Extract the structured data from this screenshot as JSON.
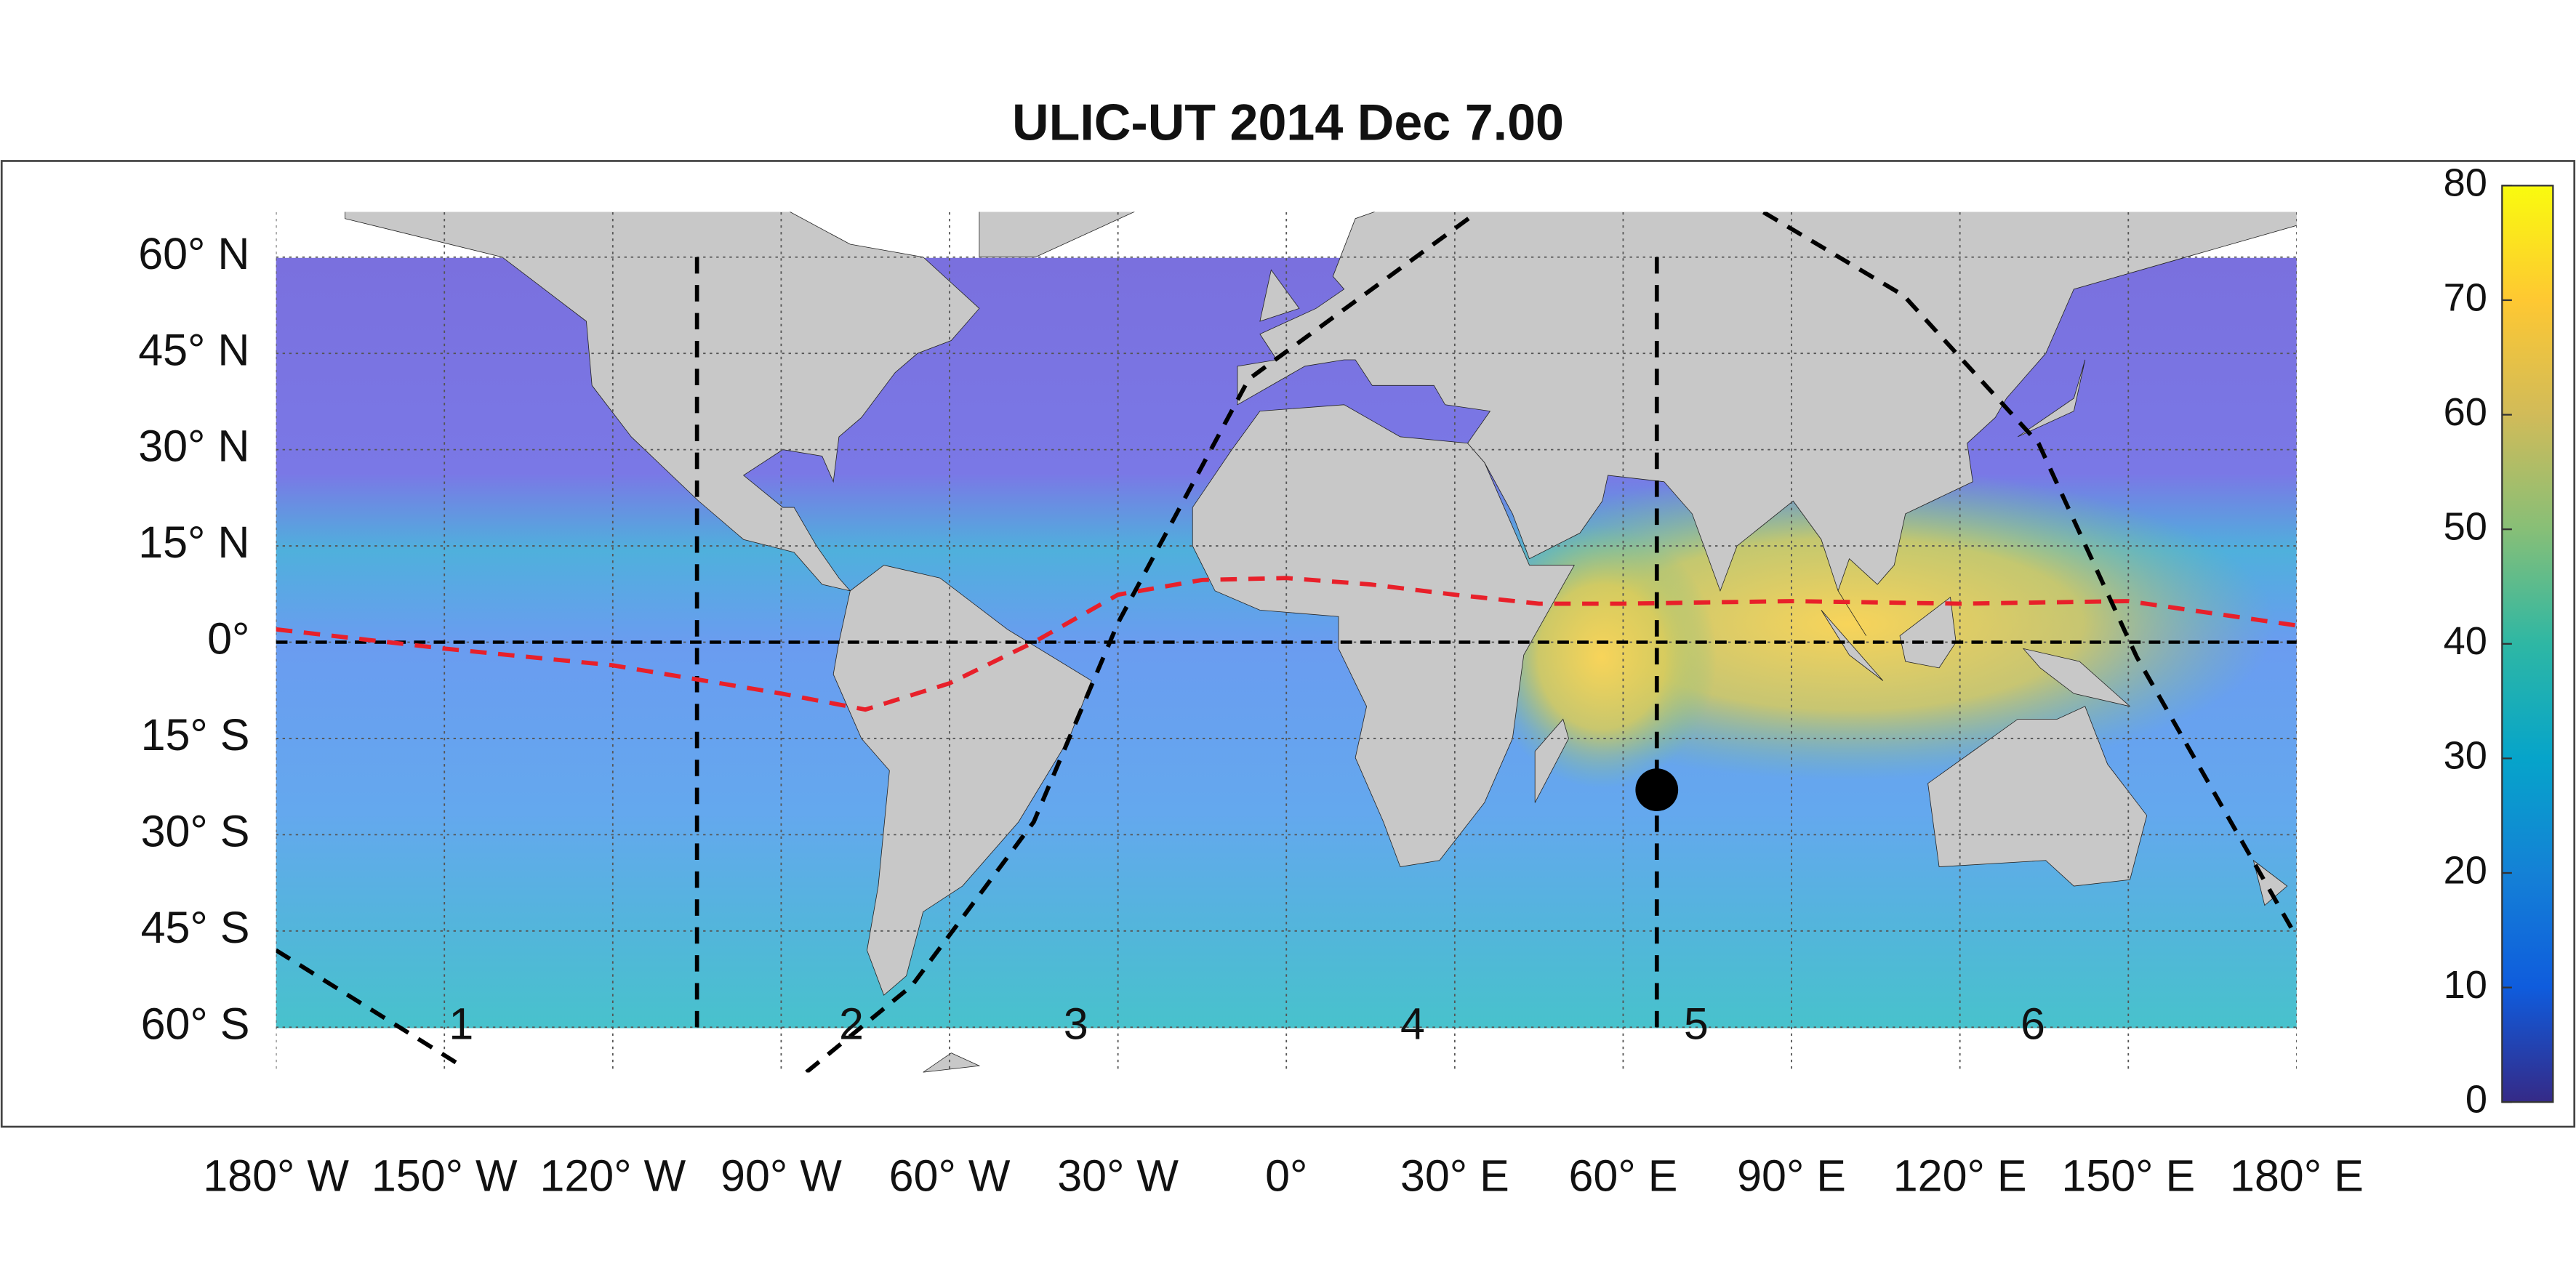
{
  "chart_data": {
    "type": "map",
    "title": "ULIC-UT 2014 Dec  7.00",
    "xlim": [
      -180,
      180
    ],
    "ylim": [
      -67,
      67
    ],
    "xticks": [
      {
        "value": -180,
        "label": "180° W"
      },
      {
        "value": -150,
        "label": "150° W"
      },
      {
        "value": -120,
        "label": "120° W"
      },
      {
        "value": -90,
        "label": "90° W"
      },
      {
        "value": -60,
        "label": "60° W"
      },
      {
        "value": -30,
        "label": "30° W"
      },
      {
        "value": 0,
        "label": "0°"
      },
      {
        "value": 30,
        "label": "30° E"
      },
      {
        "value": 60,
        "label": "60° E"
      },
      {
        "value": 90,
        "label": "90° E"
      },
      {
        "value": 120,
        "label": "120° E"
      },
      {
        "value": 150,
        "label": "150° E"
      },
      {
        "value": 180,
        "label": "180° E"
      }
    ],
    "yticks": [
      {
        "value": -60,
        "label": "60° S"
      },
      {
        "value": -45,
        "label": "45° S"
      },
      {
        "value": -30,
        "label": "30° S"
      },
      {
        "value": -15,
        "label": "15° S"
      },
      {
        "value": 0,
        "label": "0°"
      },
      {
        "value": 15,
        "label": "15° N"
      },
      {
        "value": 30,
        "label": "30° N"
      },
      {
        "value": 45,
        "label": "45° N"
      },
      {
        "value": 60,
        "label": "60° N"
      }
    ],
    "grid": true,
    "series": [
      {
        "color": "#e8202a",
        "x": [
          -180,
          -150,
          -120,
          -90,
          -75,
          -60,
          -45,
          -30,
          -15,
          0,
          15,
          30,
          45,
          60,
          90,
          120,
          150,
          180
        ],
        "values": [
          2,
          -1,
          -3.6,
          -8,
          -10.5,
          -6.4,
          0,
          7.4,
          9.7,
          10,
          9,
          7.4,
          6,
          6,
          6.4,
          6,
          6.4,
          2.6
        ]
      },
      {
        "color": "#000000",
        "x": [
          -180,
          -147,
          -116,
          -85.5,
          -66.7,
          -45,
          -30,
          -6.7,
          34,
          59.5,
          85,
          110,
          134,
          151.5,
          180
        ],
        "values": [
          -48,
          -66,
          null,
          -67,
          -53.5,
          -28,
          3,
          41,
          67,
          null,
          67,
          54,
          31,
          -2.3,
          -46
        ]
      }
    ],
    "vlines": [
      -105,
      66
    ],
    "hlines": [
      0
    ],
    "points": {
      "x": [
        66
      ],
      "values": [
        -23
      ],
      "color": "#000000"
    },
    "annotations": [
      {
        "text": "1",
        "x": -147,
        "y": -60
      },
      {
        "text": "2",
        "x": -77.5,
        "y": -60
      },
      {
        "text": "3",
        "x": -37.5,
        "y": -60
      },
      {
        "text": "4",
        "x": 22.5,
        "y": -60
      },
      {
        "text": "5",
        "x": 73,
        "y": -60
      },
      {
        "text": "6",
        "x": 133,
        "y": -60
      }
    ],
    "colorbar": {
      "clim": [
        0,
        80
      ],
      "ticks": [
        0,
        10,
        20,
        30,
        40,
        50,
        60,
        70,
        80
      ]
    }
  }
}
